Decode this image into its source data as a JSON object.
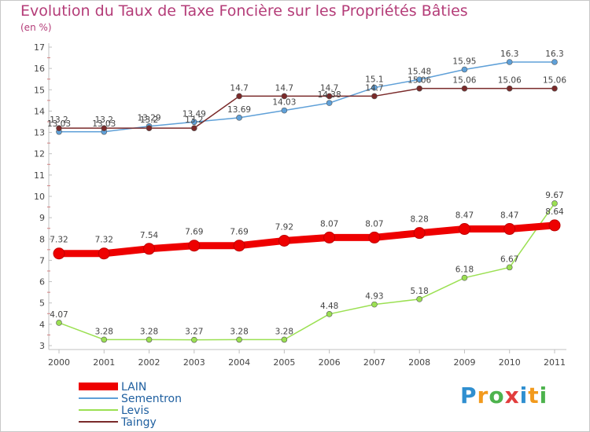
{
  "header": {
    "title": "Evolution du Taux de Taxe Foncière sur les Propriétés Bâties",
    "unit": "(en %)"
  },
  "logo": {
    "text": "Proxiti",
    "colors": [
      "#2f8fd0",
      "#f29a1d",
      "#4db34d",
      "#e23d3d",
      "#2f8fd0",
      "#f29a1d",
      "#4db34d"
    ]
  },
  "chart_data": {
    "type": "line",
    "title": "Evolution du Taux de Taxe Foncière sur les Propriétés Bâties",
    "ylabel": "(en %)",
    "xlabel": "",
    "categories": [
      "2000",
      "2001",
      "2002",
      "2003",
      "2004",
      "2005",
      "2006",
      "2007",
      "2008",
      "2009",
      "2010",
      "2011"
    ],
    "ylim": [
      3,
      17
    ],
    "yticks": [
      3,
      4,
      5,
      6,
      7,
      8,
      9,
      10,
      11,
      12,
      13,
      14,
      15,
      16,
      17
    ],
    "grid": false,
    "legend_position": "bottom-left",
    "series": [
      {
        "name": "LAIN",
        "color": "#ee0000",
        "style": "thick",
        "values": [
          7.32,
          7.32,
          7.54,
          7.69,
          7.69,
          7.92,
          8.07,
          8.07,
          8.28,
          8.47,
          8.47,
          8.64
        ],
        "labels": [
          "7.32",
          "7.32",
          "7.54",
          "7.69",
          "7.69",
          "7.92",
          "8.07",
          "8.07",
          "8.28",
          "8.47",
          "8.47",
          "8.64"
        ]
      },
      {
        "name": "Sementron",
        "color": "#5fa0d8",
        "style": "thin",
        "values": [
          13.03,
          13.03,
          13.29,
          13.49,
          13.69,
          14.03,
          14.38,
          15.1,
          15.48,
          15.95,
          16.3,
          16.3
        ],
        "labels": [
          "13.03",
          "13.03",
          "13.29",
          "13.49",
          "13.69",
          "14.03",
          "14.38",
          "15.1",
          "15.48",
          "15.95",
          "16.3",
          "16.3"
        ]
      },
      {
        "name": "Levis",
        "color": "#9be052",
        "style": "thin",
        "values": [
          4.07,
          3.28,
          3.28,
          3.27,
          3.28,
          3.28,
          4.48,
          4.93,
          5.18,
          6.18,
          6.67,
          9.67
        ],
        "labels": [
          "4.07",
          "3.28",
          "3.28",
          "3.27",
          "3.28",
          "3.28",
          "4.48",
          "4.93",
          "5.18",
          "6.18",
          "6.67",
          "9.67"
        ]
      },
      {
        "name": "Taingy",
        "color": "#7a2a2a",
        "style": "thin",
        "values": [
          13.2,
          13.2,
          13.2,
          13.2,
          14.7,
          14.7,
          14.7,
          14.7,
          15.06,
          15.06,
          15.06,
          15.06
        ],
        "labels": [
          "13.2",
          "13.2",
          "13.2",
          "13.2",
          "14.7",
          "14.7",
          "14.7",
          "14.7",
          "15.06",
          "15.06",
          "15.06",
          "15.06"
        ]
      }
    ]
  }
}
